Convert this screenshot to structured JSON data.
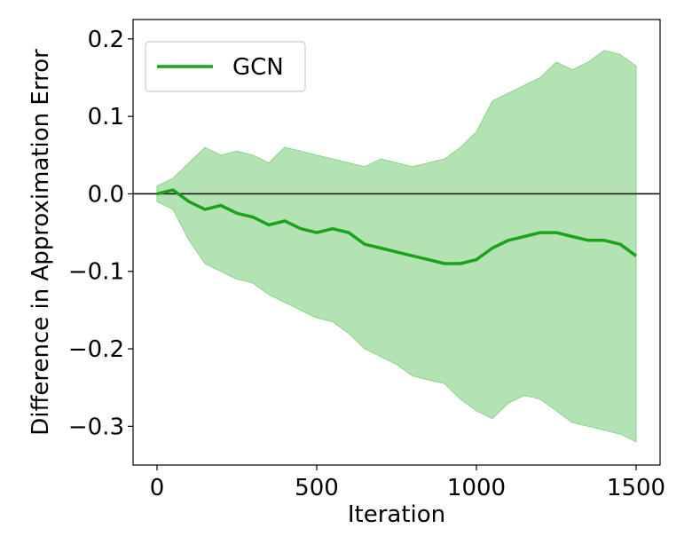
{
  "chart_data": {
    "type": "line",
    "title": "",
    "xlabel": "Iteration",
    "ylabel": "Difference in Approximation Error",
    "xlim": [
      -75,
      1575
    ],
    "ylim": [
      -0.35,
      0.225
    ],
    "x_ticks": [
      0,
      500,
      1000,
      1500
    ],
    "x_tick_labels": [
      "0",
      "500",
      "1000",
      "1500"
    ],
    "y_ticks": [
      0.2,
      0.1,
      0.0,
      -0.1,
      -0.2,
      -0.3
    ],
    "y_tick_labels": [
      "0.2",
      "0.1",
      "0.0",
      "−0.1",
      "−0.2",
      "−0.3"
    ],
    "grid": false,
    "reference_line_y": 0.0,
    "legend": {
      "placement": "top-left",
      "entries": [
        "GCN"
      ]
    },
    "series": [
      {
        "name": "GCN",
        "color": "#1aa31a",
        "band_color": "#b3e2b3",
        "x": [
          0,
          50,
          100,
          150,
          200,
          250,
          300,
          350,
          400,
          450,
          500,
          550,
          600,
          650,
          700,
          750,
          800,
          850,
          900,
          950,
          1000,
          1050,
          1100,
          1150,
          1200,
          1250,
          1300,
          1350,
          1400,
          1450,
          1500
        ],
        "mean": [
          0.0,
          0.005,
          -0.01,
          -0.02,
          -0.015,
          -0.025,
          -0.03,
          -0.04,
          -0.035,
          -0.045,
          -0.05,
          -0.045,
          -0.05,
          -0.065,
          -0.07,
          -0.075,
          -0.08,
          -0.085,
          -0.09,
          -0.09,
          -0.085,
          -0.07,
          -0.06,
          -0.055,
          -0.05,
          -0.05,
          -0.055,
          -0.06,
          -0.06,
          -0.065,
          -0.08
        ],
        "upper": [
          0.01,
          0.02,
          0.04,
          0.06,
          0.05,
          0.055,
          0.05,
          0.04,
          0.06,
          0.055,
          0.05,
          0.045,
          0.04,
          0.035,
          0.045,
          0.04,
          0.035,
          0.04,
          0.045,
          0.06,
          0.08,
          0.12,
          0.13,
          0.14,
          0.15,
          0.17,
          0.16,
          0.17,
          0.185,
          0.18,
          0.165
        ],
        "lower": [
          -0.01,
          -0.02,
          -0.06,
          -0.09,
          -0.1,
          -0.11,
          -0.115,
          -0.13,
          -0.14,
          -0.15,
          -0.16,
          -0.165,
          -0.18,
          -0.2,
          -0.21,
          -0.22,
          -0.235,
          -0.24,
          -0.245,
          -0.265,
          -0.28,
          -0.29,
          -0.27,
          -0.26,
          -0.265,
          -0.28,
          -0.295,
          -0.3,
          -0.305,
          -0.31,
          -0.32
        ]
      }
    ]
  }
}
